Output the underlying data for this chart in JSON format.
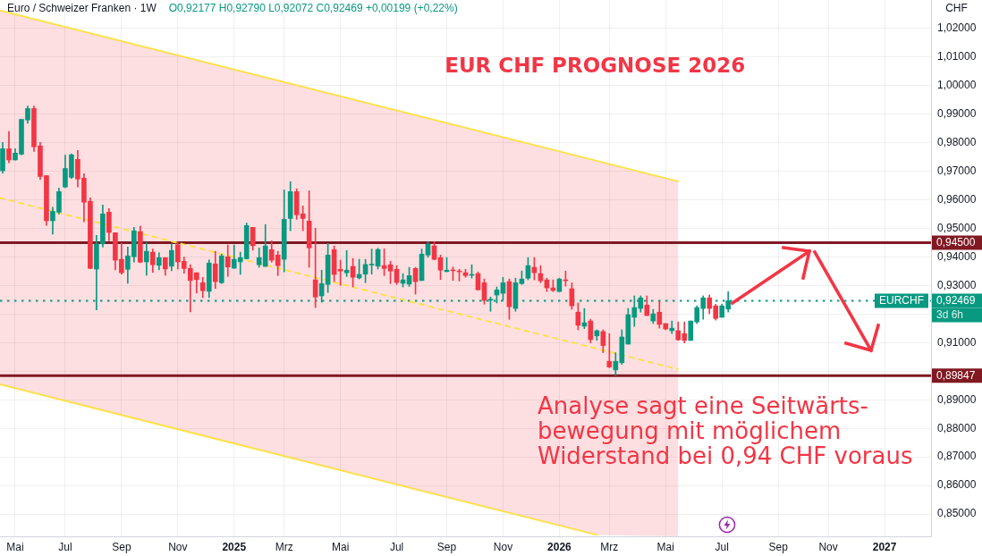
{
  "chart_data": {
    "type": "candlestick",
    "title": "EUR CHF PROGNOSE 2026",
    "subtitle": "Euro / Schweizer Franken · 1W",
    "ylabel": "CHF",
    "annotations": [
      "O0,92177 H0,92790 L0,92072 C0,92469 +0,00199 (+0,22%)",
      "Analyse sagt eine Seitwärts-\nbewegung mit möglichem\nWiderstand bei 0,94 CHF voraus",
      "EURCHF",
      "3d 6h"
    ],
    "series": [
      {
        "x": [
          "2024-04-22",
          "2024-04-29",
          "2024-05-06",
          "2024-05-13",
          "2024-05-20",
          "2024-05-27",
          "2024-06-03",
          "2024-06-10",
          "2024-06-17",
          "2024-06-24",
          "2024-07-01",
          "2024-07-08",
          "2024-07-15",
          "2024-07-22",
          "2024-07-29",
          "2024-08-05",
          "2024-08-12",
          "2024-08-19",
          "2024-08-26",
          "2024-09-02",
          "2024-09-09",
          "2024-09-16",
          "2024-09-23",
          "2024-09-30",
          "2024-10-07",
          "2024-10-14",
          "2024-10-21",
          "2024-10-28",
          "2024-11-04",
          "2024-11-11",
          "2024-11-18",
          "2024-11-25",
          "2024-12-02",
          "2024-12-09",
          "2024-12-16",
          "2024-12-23",
          "2024-12-30",
          "2025-01-06",
          "2025-01-13",
          "2025-01-20",
          "2025-01-27",
          "2025-02-03",
          "2025-02-10",
          "2025-02-17",
          "2025-02-24",
          "2025-03-03",
          "2025-03-10",
          "2025-03-17",
          "2025-03-24",
          "2025-03-31",
          "2025-04-07",
          "2025-04-14",
          "2025-04-21",
          "2025-04-28",
          "2025-05-05",
          "2025-05-12",
          "2025-05-19",
          "2025-05-26",
          "2025-06-02",
          "2025-06-09",
          "2025-06-16",
          "2025-06-23",
          "2025-06-30",
          "2025-07-07",
          "2025-07-14",
          "2025-07-21",
          "2025-07-28",
          "2025-08-04",
          "2025-08-11",
          "2025-08-18",
          "2025-08-25",
          "2025-09-01",
          "2025-09-08",
          "2025-09-15",
          "2025-09-22",
          "2025-09-29",
          "2025-10-06",
          "2025-10-13",
          "2025-10-20",
          "2025-10-27",
          "2025-11-03",
          "2025-11-10",
          "2025-11-17",
          "2025-11-24",
          "2025-12-01",
          "2025-12-08",
          "2025-12-15",
          "2025-12-22",
          "2025-12-29",
          "2026-01-05",
          "2026-01-12",
          "2026-01-19",
          "2026-01-26",
          "2026-02-02",
          "2026-02-09",
          "2026-02-16",
          "2026-02-23",
          "2026-03-02",
          "2026-03-09",
          "2026-03-16",
          "2026-03-23",
          "2026-03-30",
          "2026-04-06",
          "2026-04-13",
          "2026-04-20",
          "2026-04-27",
          "2026-05-04",
          "2026-05-11",
          "2026-05-18",
          "2026-05-25",
          "2026-06-01",
          "2026-06-08",
          "2026-06-15",
          "2026-06-22",
          "2026-06-29",
          "2026-07-06",
          "2026-07-13"
        ],
        "ohlc": [
          [
            0.9702,
            0.9801,
            0.9694,
            0.9779
          ],
          [
            0.9779,
            0.984,
            0.973,
            0.974
          ],
          [
            0.974,
            0.9779,
            0.9739,
            0.9764
          ],
          [
            0.976,
            0.9882,
            0.9758,
            0.9882
          ],
          [
            0.988,
            0.9929,
            0.9868,
            0.992
          ],
          [
            0.992,
            0.9929,
            0.977,
            0.9786
          ],
          [
            0.9789,
            0.9801,
            0.9671,
            0.9682
          ],
          [
            0.9685,
            0.9685,
            0.9511,
            0.9527
          ],
          [
            0.9527,
            0.9574,
            0.948,
            0.956
          ],
          [
            0.9557,
            0.9642,
            0.9551,
            0.9629
          ],
          [
            0.9645,
            0.9757,
            0.9643,
            0.971
          ],
          [
            0.9679,
            0.9761,
            0.9675,
            0.9758
          ],
          [
            0.9742,
            0.9773,
            0.9645,
            0.9673
          ],
          [
            0.9676,
            0.9692,
            0.9523,
            0.9592
          ],
          [
            0.9595,
            0.9607,
            0.936,
            0.936
          ],
          [
            0.9358,
            0.9476,
            0.9215,
            0.9446
          ],
          [
            0.9446,
            0.9582,
            0.9435,
            0.9551
          ],
          [
            0.9557,
            0.957,
            0.9457,
            0.9486
          ],
          [
            0.9485,
            0.9485,
            0.9355,
            0.9389
          ],
          [
            0.9392,
            0.9449,
            0.934,
            0.9345
          ],
          [
            0.9357,
            0.9435,
            0.9308,
            0.9404
          ],
          [
            0.9401,
            0.9504,
            0.9382,
            0.9492
          ],
          [
            0.9489,
            0.9509,
            0.938,
            0.9382
          ],
          [
            0.9383,
            0.9451,
            0.9336,
            0.942
          ],
          [
            0.9417,
            0.9428,
            0.9346,
            0.9373
          ],
          [
            0.9371,
            0.9415,
            0.9355,
            0.9398
          ],
          [
            0.9398,
            0.9398,
            0.9336,
            0.9358
          ],
          [
            0.9368,
            0.9447,
            0.9352,
            0.9423
          ],
          [
            0.9443,
            0.9453,
            0.9358,
            0.9383
          ],
          [
            0.9385,
            0.94,
            0.9343,
            0.936
          ],
          [
            0.936,
            0.9373,
            0.9208,
            0.9318
          ],
          [
            0.9345,
            0.9345,
            0.9274,
            0.9321
          ],
          [
            0.931,
            0.9329,
            0.9258,
            0.9282
          ],
          [
            0.928,
            0.939,
            0.9258,
            0.9379
          ],
          [
            0.9376,
            0.942,
            0.929,
            0.9314
          ],
          [
            0.931,
            0.941,
            0.9307,
            0.9404
          ],
          [
            0.9401,
            0.9442,
            0.9332,
            0.9365
          ],
          [
            0.9361,
            0.9442,
            0.936,
            0.9392
          ],
          [
            0.9383,
            0.9417,
            0.9339,
            0.9398
          ],
          [
            0.9394,
            0.9519,
            0.9393,
            0.951
          ],
          [
            0.9504,
            0.9504,
            0.9424,
            0.944
          ],
          [
            0.9373,
            0.9432,
            0.9364,
            0.9398
          ],
          [
            0.9367,
            0.9514,
            0.9367,
            0.9439
          ],
          [
            0.9426,
            0.9457,
            0.9382,
            0.9389
          ],
          [
            0.9407,
            0.942,
            0.9335,
            0.937
          ],
          [
            0.9392,
            0.9635,
            0.9348,
            0.9532
          ],
          [
            0.9535,
            0.9664,
            0.9492,
            0.9629
          ],
          [
            0.9629,
            0.9639,
            0.9532,
            0.9548
          ],
          [
            0.9551,
            0.9579,
            0.9492,
            0.9535
          ],
          [
            0.9526,
            0.9632,
            0.9364,
            0.9432
          ],
          [
            0.932,
            0.9501,
            0.9223,
            0.926
          ],
          [
            0.9264,
            0.9354,
            0.9242,
            0.9307
          ],
          [
            0.9304,
            0.9448,
            0.9276,
            0.9407
          ],
          [
            0.9426,
            0.9439,
            0.9314,
            0.9339
          ],
          [
            0.9357,
            0.9389,
            0.9301,
            0.9351
          ],
          [
            0.9345,
            0.9423,
            0.9332,
            0.9354
          ],
          [
            0.9367,
            0.9395,
            0.9295,
            0.9329
          ],
          [
            0.9327,
            0.9392,
            0.9323,
            0.9339
          ],
          [
            0.934,
            0.9392,
            0.931,
            0.9374
          ],
          [
            0.9372,
            0.9428,
            0.934,
            0.9374
          ],
          [
            0.9368,
            0.9431,
            0.9358,
            0.9426
          ],
          [
            0.937,
            0.9428,
            0.9335,
            0.936
          ],
          [
            0.9373,
            0.9385,
            0.9307,
            0.9351
          ],
          [
            0.9357,
            0.937,
            0.9304,
            0.9311
          ],
          [
            0.9308,
            0.9342,
            0.9295,
            0.932
          ],
          [
            0.9305,
            0.9364,
            0.9297,
            0.9335
          ],
          [
            0.936,
            0.9364,
            0.927,
            0.9314
          ],
          [
            0.9318,
            0.9428,
            0.9317,
            0.941
          ],
          [
            0.9407,
            0.9454,
            0.9399,
            0.9445
          ],
          [
            0.9439,
            0.9454,
            0.939,
            0.9392
          ],
          [
            0.9398,
            0.9407,
            0.9321,
            0.9354
          ],
          [
            0.9349,
            0.9398,
            0.9348,
            0.9354
          ],
          [
            0.9354,
            0.9365,
            0.9318,
            0.9352
          ],
          [
            0.9351,
            0.9357,
            0.9316,
            0.9348
          ],
          [
            0.9345,
            0.9357,
            0.9329,
            0.9335
          ],
          [
            0.9336,
            0.9373,
            0.9326,
            0.9339
          ],
          [
            0.9342,
            0.9348,
            0.9285,
            0.9285
          ],
          [
            0.931,
            0.9323,
            0.9235,
            0.9248
          ],
          [
            0.9249,
            0.926,
            0.921,
            0.9251
          ],
          [
            0.9267,
            0.9295,
            0.9239,
            0.9285
          ],
          [
            0.9273,
            0.9329,
            0.9248,
            0.931
          ],
          [
            0.9314,
            0.9323,
            0.9182,
            0.9226
          ],
          [
            0.922,
            0.9326,
            0.921,
            0.931
          ],
          [
            0.9307,
            0.9351,
            0.9304,
            0.9323
          ],
          [
            0.9326,
            0.9398,
            0.932,
            0.937
          ],
          [
            0.9364,
            0.9398,
            0.932,
            0.9345
          ],
          [
            0.9342,
            0.937,
            0.931,
            0.9317
          ],
          [
            0.932,
            0.9326,
            0.9279,
            0.9292
          ],
          [
            0.9292,
            0.932,
            0.9279,
            0.9283
          ],
          [
            0.9279,
            0.9326,
            0.9279,
            0.9323
          ],
          [
            0.9319,
            0.9351,
            0.9298,
            0.9317
          ],
          [
            0.9289,
            0.931,
            0.9217,
            0.9229
          ],
          [
            0.9207,
            0.9239,
            0.9145,
            0.9161
          ],
          [
            0.9158,
            0.922,
            0.9149,
            0.917
          ],
          [
            0.9176,
            0.9182,
            0.9099,
            0.9111
          ],
          [
            0.9124,
            0.9145,
            0.9108,
            0.9142
          ],
          [
            0.9139,
            0.9145,
            0.9065,
            0.909
          ],
          [
            0.9035,
            0.9132,
            0.9012,
            0.9015
          ],
          [
            0.9005,
            0.9065,
            0.8985,
            0.9035
          ],
          [
            0.903,
            0.9145,
            0.9024,
            0.912
          ],
          [
            0.9095,
            0.922,
            0.9095,
            0.9198
          ],
          [
            0.9189,
            0.9264,
            0.9157,
            0.9223
          ],
          [
            0.922,
            0.9264,
            0.9207,
            0.9257
          ],
          [
            0.9232,
            0.9264,
            0.9195,
            0.9195
          ],
          [
            0.9176,
            0.9217,
            0.9167,
            0.9201
          ],
          [
            0.9207,
            0.9245,
            0.9151,
            0.9164
          ],
          [
            0.9167,
            0.9167,
            0.9145,
            0.9148
          ],
          [
            0.9142,
            0.9176,
            0.9132,
            0.9151
          ],
          [
            0.9142,
            0.9173,
            0.9108,
            0.911
          ],
          [
            0.9132,
            0.9173,
            0.9099,
            0.9108
          ],
          [
            0.9108,
            0.9176,
            0.9108,
            0.9176
          ],
          [
            0.9173,
            0.9229,
            0.9167,
            0.9223
          ],
          [
            0.922,
            0.9264,
            0.9182,
            0.9257
          ],
          [
            0.9257,
            0.9267,
            0.9201,
            0.922
          ],
          [
            0.9229,
            0.9235,
            0.9179,
            0.9185
          ],
          [
            0.9189,
            0.9235,
            0.9189,
            0.9229
          ],
          [
            0.92177,
            0.9279,
            0.92072,
            0.92469
          ]
        ],
        "colors": [
          "#089981",
          "#f23645",
          "#089981",
          "#089981",
          "#089981",
          "#f23645",
          "#f23645",
          "#f23645",
          "#089981",
          "#089981",
          "#089981",
          "#089981",
          "#f23645",
          "#f23645",
          "#f23645",
          "#089981",
          "#089981",
          "#f23645",
          "#f23645",
          "#f23645",
          "#089981",
          "#089981",
          "#f23645",
          "#089981",
          "#f23645",
          "#089981",
          "#f23645",
          "#089981",
          "#f23645",
          "#f23645",
          "#f23645",
          "#f23645",
          "#f23645",
          "#089981",
          "#f23645",
          "#089981",
          "#f23645",
          "#089981",
          "#089981",
          "#089981",
          "#f23645",
          "#089981",
          "#089981",
          "#f23645",
          "#f23645",
          "#089981",
          "#089981",
          "#f23645",
          "#f23645",
          "#f23645",
          "#f23645",
          "#089981",
          "#089981",
          "#f23645",
          "#f23645",
          "#089981",
          "#f23645",
          "#089981",
          "#089981",
          "#089981",
          "#089981",
          "#f23645",
          "#f23645",
          "#f23645",
          "#089981",
          "#089981",
          "#f23645",
          "#089981",
          "#089981",
          "#f23645",
          "#f23645",
          "#089981",
          "#f23645",
          "#f23645",
          "#f23645",
          "#089981",
          "#f23645",
          "#f23645",
          "#089981",
          "#089981",
          "#089981",
          "#f23645",
          "#089981",
          "#089981",
          "#089981",
          "#f23645",
          "#f23645",
          "#f23645",
          "#f23645",
          "#089981",
          "#f23645",
          "#f23645",
          "#f23645",
          "#089981",
          "#f23645",
          "#089981",
          "#f23645",
          "#f23645",
          "#089981",
          "#089981",
          "#089981",
          "#089981",
          "#089981",
          "#f23645",
          "#089981",
          "#f23645",
          "#f23645",
          "#089981",
          "#f23645",
          "#f23645",
          "#089981",
          "#089981",
          "#089981",
          "#f23645",
          "#f23645",
          "#089981",
          "#089981"
        ]
      },
      {
        "type": "line",
        "color": "#f23645",
        "x": [
          "2024-04-19",
          "2026-02-16",
          "2026-05-18"
        ],
        "values": [
          null,
          null,
          null
        ],
        "lower": [
          0.8954,
          0.8427,
          0.8422
        ],
        "upper": [
          1.0263,
          0.9737,
          0.9665
        ]
      },
      {
        "type": "line",
        "color": "#fbe24a",
        "x": [
          "2024-04-19",
          "2026-05-18"
        ],
        "values": [
          1.0263,
          0.9665
        ]
      },
      {
        "type": "line",
        "color": "#fbe24a",
        "x": [
          "2024-04-19",
          "2026-05-18"
        ],
        "values": [
          0.9607,
          0.9007
        ],
        "line_style": "dashed"
      },
      {
        "type": "line",
        "color": "#fbe24a",
        "x": [
          "2024-04-19",
          "2026-02-16"
        ],
        "values": [
          0.8954,
          0.8427
        ]
      }
    ],
    "xlim": [
      "2024-04-19",
      "2027-02-25"
    ],
    "xticks": [
      {
        "value": "2024-05-06",
        "label": "Mai"
      },
      {
        "value": "2024-07-01",
        "label": "Jul"
      },
      {
        "value": "2024-09-02",
        "label": "Sep"
      },
      {
        "value": "2024-11-04",
        "label": "Nov"
      },
      {
        "value": "2025-01-06",
        "label": "2025"
      },
      {
        "value": "2025-03-03",
        "label": "Mrz"
      },
      {
        "value": "2025-05-05",
        "label": "Mai"
      },
      {
        "value": "2025-07-07",
        "label": "Jul"
      },
      {
        "value": "2025-09-01",
        "label": "Sep"
      },
      {
        "value": "2025-11-03",
        "label": "Nov"
      },
      {
        "value": "2026-01-05",
        "label": "2026"
      },
      {
        "value": "2026-03-02",
        "label": "Mrz"
      },
      {
        "value": "2026-05-04",
        "label": "Mai"
      },
      {
        "value": "2026-07-06",
        "label": "Jul"
      },
      {
        "value": "2026-09-07",
        "label": "Sep"
      },
      {
        "value": "2026-11-02",
        "label": "Nov"
      },
      {
        "value": "2027-01-04",
        "label": "2027"
      }
    ],
    "ylim": [
      0.8422,
      1.03
    ],
    "yticks": [
      {
        "value": 0.85,
        "label": "0,85000"
      },
      {
        "value": 0.86,
        "label": "0,86000"
      },
      {
        "value": 0.87,
        "label": "0,87000"
      },
      {
        "value": 0.88,
        "label": "0,88000"
      },
      {
        "value": 0.89,
        "label": "0,89000"
      },
      {
        "value": 0.9,
        "label": null
      },
      {
        "value": 0.91,
        "label": "0,91000"
      },
      {
        "value": 0.92,
        "label": null
      },
      {
        "value": 0.93,
        "label": "0,93000"
      },
      {
        "value": 0.94,
        "label": "0,94000"
      },
      {
        "value": 0.95,
        "label": "0,95000"
      },
      {
        "value": 0.96,
        "label": "0,96000"
      },
      {
        "value": 0.97,
        "label": "0,97000"
      },
      {
        "value": 0.98,
        "label": "0,98000"
      },
      {
        "value": 0.99,
        "label": "0,99000"
      },
      {
        "value": 1.0,
        "label": "1,00000"
      },
      {
        "value": 1.01,
        "label": "1,01000"
      },
      {
        "value": 1.02,
        "label": "1,02000"
      }
    ],
    "ref_lines": [
      {
        "axis": "y",
        "value": 0.945,
        "label": "0,94500",
        "color": "#801922"
      },
      {
        "axis": "y",
        "value": 0.89847,
        "label": "0,89847",
        "color": "#801922"
      },
      {
        "axis": "y",
        "value": 0.92469,
        "label": "0,92469",
        "color": "#089981",
        "line_style": "dotted"
      }
    ],
    "grid": true
  }
}
